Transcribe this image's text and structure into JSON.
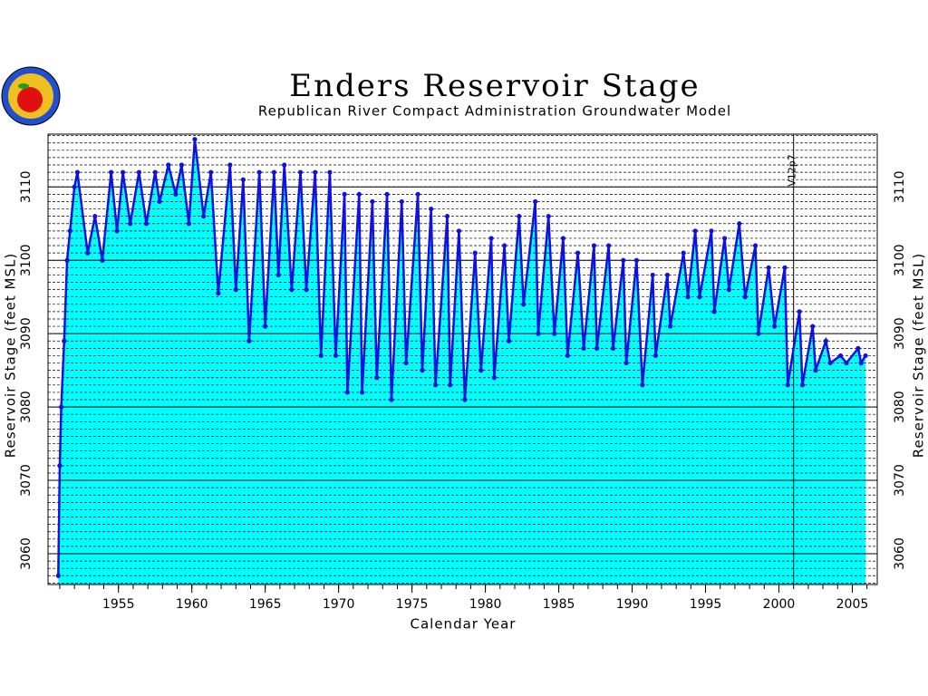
{
  "chart_data": {
    "type": "line",
    "title": "Enders Reservoir Stage",
    "subtitle": "Republican River Compact Administration Groundwater Model",
    "x_label": "Calendar Year",
    "y_label": "Reservoir Stage (feet MSL)",
    "color": "#1010e0",
    "fill_color": "#00ffff",
    "xlim": [
      1950.2,
      2006.7
    ],
    "ylim": [
      3055.8,
      3117.2
    ],
    "xticks": [
      1955,
      1960,
      1965,
      1970,
      1975,
      1980,
      1985,
      1990,
      1995,
      2000,
      2005
    ],
    "yticks": [
      3060,
      3070,
      3080,
      3090,
      3100,
      3110
    ],
    "minor_grid_step": 1,
    "annotations": [
      {
        "x": 2001,
        "text": "V12p7"
      }
    ],
    "x": [
      1950.9,
      1951.0,
      1951.1,
      1951.3,
      1951.5,
      1951.7,
      1952.0,
      1952.2,
      1952.9,
      1953.4,
      1953.9,
      1954.5,
      1954.9,
      1955.3,
      1955.8,
      1956.4,
      1956.9,
      1957.5,
      1957.8,
      1958.4,
      1958.9,
      1959.3,
      1959.8,
      1960.2,
      1960.8,
      1961.3,
      1961.8,
      1962.6,
      1963.0,
      1963.5,
      1963.9,
      1964.6,
      1965.0,
      1965.6,
      1965.9,
      1966.3,
      1966.8,
      1967.4,
      1967.8,
      1968.4,
      1968.8,
      1969.4,
      1969.8,
      1970.4,
      1970.6,
      1971.4,
      1971.6,
      1972.3,
      1972.6,
      1973.3,
      1973.6,
      1974.3,
      1974.6,
      1975.4,
      1975.7,
      1976.3,
      1976.6,
      1977.4,
      1977.6,
      1978.2,
      1978.6,
      1979.3,
      1979.7,
      1980.4,
      1980.6,
      1981.3,
      1981.6,
      1982.3,
      1982.6,
      1983.4,
      1983.6,
      1984.3,
      1984.7,
      1985.3,
      1985.6,
      1986.3,
      1986.7,
      1987.4,
      1987.6,
      1988.4,
      1988.7,
      1989.4,
      1989.6,
      1990.3,
      1990.7,
      1991.4,
      1991.6,
      1992.4,
      1992.6,
      1993.5,
      1993.8,
      1994.3,
      1994.6,
      1995.4,
      1995.6,
      1996.3,
      1996.6,
      1997.3,
      1997.7,
      1998.4,
      1998.6,
      1999.3,
      1999.7,
      2000.4,
      2000.6,
      2001.4,
      2001.6,
      2002.3,
      2002.5,
      2003.2,
      2003.5,
      2004.2,
      2004.6,
      2005.4,
      2005.6,
      2005.9
    ],
    "values": [
      3057,
      3072,
      3080,
      3089,
      3100,
      3104,
      3110,
      3112,
      3101,
      3106,
      3100,
      3112,
      3104,
      3112,
      3105,
      3112,
      3105,
      3112,
      3108,
      3113,
      3109,
      3113,
      3105,
      3116.5,
      3106,
      3112,
      3095.5,
      3113,
      3096,
      3111,
      3089,
      3112,
      3091,
      3112,
      3098,
      3113,
      3096,
      3112,
      3096,
      3112,
      3087,
      3112,
      3087,
      3109,
      3082,
      3109,
      3082,
      3108,
      3084,
      3109,
      3081,
      3108,
      3086,
      3109,
      3085,
      3107,
      3083,
      3106,
      3083,
      3104,
      3081,
      3101,
      3085,
      3103,
      3084,
      3102,
      3089,
      3106,
      3094,
      3108,
      3090,
      3106,
      3090,
      3103,
      3087,
      3101,
      3088,
      3102,
      3088,
      3102,
      3088,
      3100,
      3086,
      3100,
      3083,
      3098,
      3087,
      3098,
      3091,
      3101,
      3095,
      3104,
      3095,
      3104,
      3093,
      3103,
      3096,
      3105,
      3095,
      3102,
      3090,
      3099,
      3091,
      3099,
      3083,
      3093,
      3083,
      3091,
      3085,
      3089,
      3086,
      3087,
      3086,
      3088,
      3086,
      3087
    ]
  }
}
